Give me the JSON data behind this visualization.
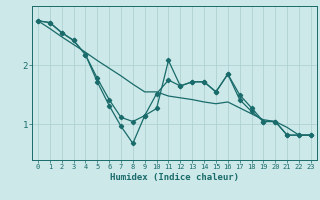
{
  "xlabel": "Humidex (Indice chaleur)",
  "x_values": [
    0,
    1,
    2,
    3,
    4,
    5,
    6,
    7,
    8,
    9,
    10,
    11,
    12,
    13,
    14,
    15,
    16,
    17,
    18,
    19,
    20,
    21,
    22,
    23
  ],
  "line1_y": [
    2.75,
    2.72,
    2.55,
    2.42,
    2.18,
    1.72,
    1.32,
    0.97,
    0.68,
    1.15,
    1.27,
    2.08,
    1.65,
    1.72,
    1.72,
    1.55,
    1.85,
    1.5,
    1.28,
    1.05,
    1.05,
    0.82,
    0.82,
    0.82
  ],
  "line2_y": [
    2.75,
    2.72,
    2.55,
    2.42,
    2.18,
    1.78,
    1.42,
    1.12,
    1.05,
    1.15,
    1.52,
    1.75,
    1.65,
    1.72,
    1.72,
    1.55,
    1.85,
    1.42,
    1.22,
    1.05,
    1.05,
    0.82,
    0.82,
    0.82
  ],
  "line3_y": [
    2.75,
    2.62,
    2.48,
    2.35,
    2.22,
    2.08,
    1.95,
    1.82,
    1.68,
    1.55,
    1.55,
    1.48,
    1.45,
    1.42,
    1.38,
    1.35,
    1.38,
    1.28,
    1.18,
    1.08,
    1.05,
    0.95,
    0.82,
    0.82
  ],
  "bg_color": "#cce8e8",
  "line_color": "#1a6b6b",
  "grid_color": "#aacece",
  "yticks": [
    1,
    2
  ],
  "ylim": [
    0.4,
    3.0
  ],
  "xlim": [
    -0.5,
    23.5
  ]
}
